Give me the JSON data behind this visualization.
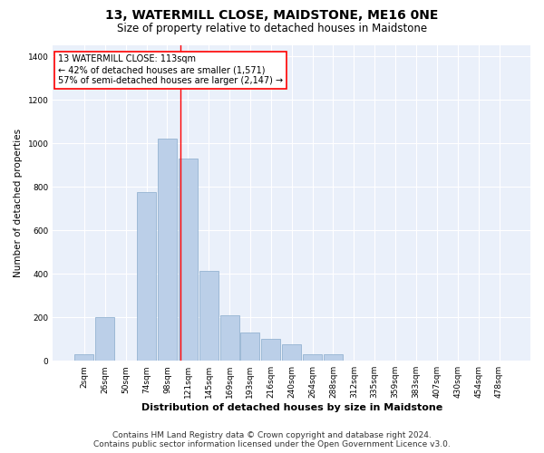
{
  "title": "13, WATERMILL CLOSE, MAIDSTONE, ME16 0NE",
  "subtitle": "Size of property relative to detached houses in Maidstone",
  "xlabel": "Distribution of detached houses by size in Maidstone",
  "ylabel": "Number of detached properties",
  "footer_line1": "Contains HM Land Registry data © Crown copyright and database right 2024.",
  "footer_line2": "Contains public sector information licensed under the Open Government Licence v3.0.",
  "categories": [
    "2sqm",
    "26sqm",
    "50sqm",
    "74sqm",
    "98sqm",
    "121sqm",
    "145sqm",
    "169sqm",
    "193sqm",
    "216sqm",
    "240sqm",
    "264sqm",
    "288sqm",
    "312sqm",
    "335sqm",
    "359sqm",
    "383sqm",
    "407sqm",
    "430sqm",
    "454sqm",
    "478sqm"
  ],
  "values": [
    30,
    200,
    0,
    775,
    1020,
    930,
    415,
    210,
    130,
    100,
    75,
    30,
    30,
    0,
    0,
    0,
    0,
    0,
    0,
    0,
    0
  ],
  "bar_color": "#BBCFE8",
  "bar_edge_color": "#88AACC",
  "annotation_box_text": "13 WATERMILL CLOSE: 113sqm\n← 42% of detached houses are smaller (1,571)\n57% of semi-detached houses are larger (2,147) →",
  "annotation_box_color": "white",
  "annotation_box_edge_color": "red",
  "ylim": [
    0,
    1450
  ],
  "background_color": "#EAF0FA",
  "grid_color": "white",
  "title_fontsize": 10,
  "subtitle_fontsize": 8.5,
  "ylabel_fontsize": 7.5,
  "xlabel_fontsize": 8,
  "tick_fontsize": 6.5,
  "annotation_fontsize": 7,
  "footer_fontsize": 6.5
}
